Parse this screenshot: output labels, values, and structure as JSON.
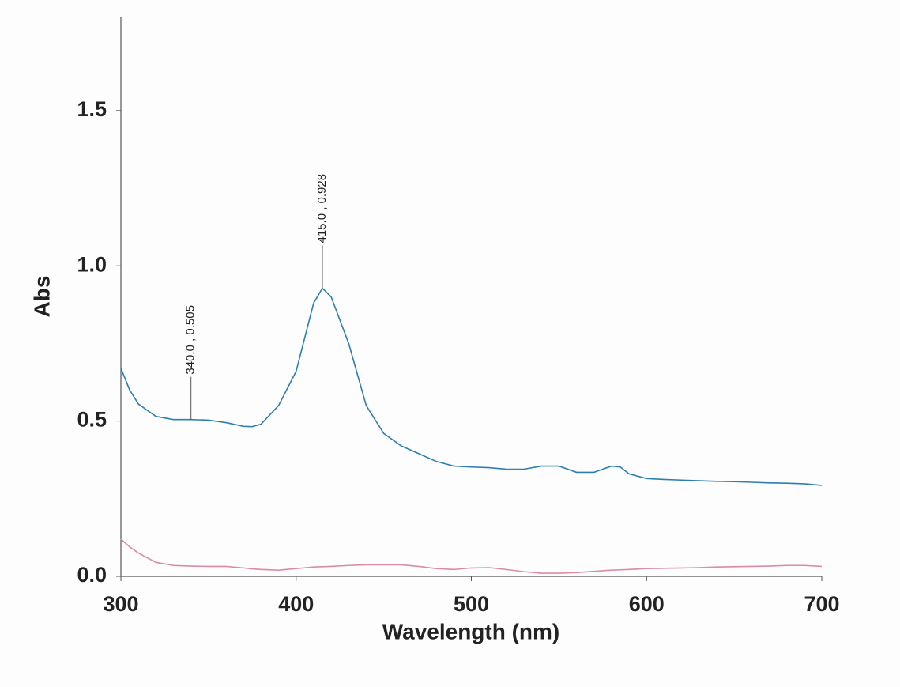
{
  "chart_data": {
    "type": "line",
    "xlabel": "Wavelength (nm)",
    "ylabel": "Abs",
    "x": [
      300,
      305,
      310,
      320,
      330,
      340,
      350,
      360,
      370,
      375,
      380,
      390,
      400,
      410,
      415,
      420,
      430,
      440,
      450,
      460,
      470,
      480,
      490,
      500,
      510,
      520,
      530,
      540,
      550,
      560,
      570,
      580,
      585,
      590,
      600,
      610,
      620,
      630,
      640,
      650,
      660,
      670,
      680,
      690,
      700
    ],
    "series": [
      {
        "color": "#2c7fae",
        "values": [
          0.67,
          0.6,
          0.555,
          0.515,
          0.505,
          0.505,
          0.503,
          0.495,
          0.483,
          0.482,
          0.49,
          0.55,
          0.66,
          0.88,
          0.928,
          0.9,
          0.75,
          0.55,
          0.46,
          0.42,
          0.395,
          0.37,
          0.355,
          0.352,
          0.35,
          0.345,
          0.345,
          0.355,
          0.355,
          0.335,
          0.335,
          0.355,
          0.352,
          0.33,
          0.315,
          0.312,
          0.31,
          0.308,
          0.306,
          0.305,
          0.303,
          0.301,
          0.3,
          0.298,
          0.293
        ]
      },
      {
        "color": "#d98ca4",
        "values": [
          0.12,
          0.095,
          0.075,
          0.045,
          0.035,
          0.033,
          0.032,
          0.032,
          0.027,
          0.024,
          0.022,
          0.02,
          0.025,
          0.03,
          0.031,
          0.032,
          0.035,
          0.037,
          0.037,
          0.037,
          0.032,
          0.025,
          0.022,
          0.027,
          0.028,
          0.022,
          0.015,
          0.01,
          0.01,
          0.012,
          0.016,
          0.02,
          0.021,
          0.022,
          0.025,
          0.026,
          0.027,
          0.028,
          0.03,
          0.031,
          0.032,
          0.033,
          0.035,
          0.035,
          0.032
        ]
      }
    ],
    "annotations": [
      {
        "text": "340.0 , 0.505",
        "x": 340,
        "y": 0.505
      },
      {
        "text": "415.0 , 0.928",
        "x": 415,
        "y": 0.928
      }
    ],
    "xlim": [
      300,
      700
    ],
    "xticks": [
      300,
      400,
      500,
      600,
      700
    ],
    "ylim": [
      0,
      1.8
    ],
    "yticks": [
      {
        "value": 0,
        "label": "0.0"
      },
      {
        "value": 0.5,
        "label": "0.5"
      },
      {
        "value": 1,
        "label": "1.0"
      },
      {
        "value": 1.5,
        "label": "1.5"
      }
    ],
    "grid": false
  }
}
